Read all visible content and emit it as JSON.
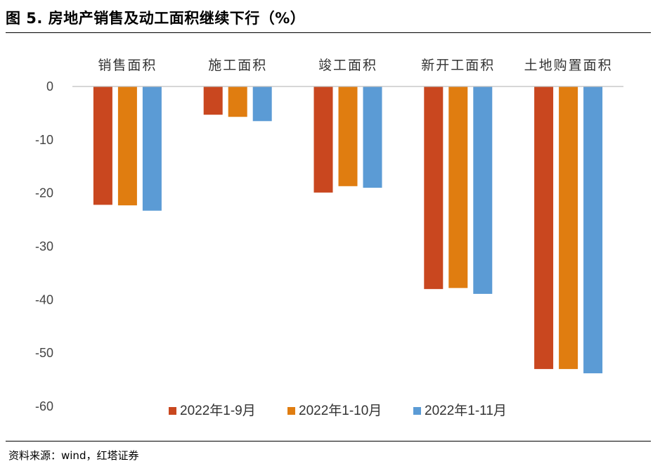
{
  "header": {
    "title": "图 5. 房地产销售及动工面积继续下行（%）"
  },
  "footer": {
    "source": "资料来源：wind，红塔证券"
  },
  "chart_data": {
    "type": "bar",
    "title": "图 5. 房地产销售及动工面积继续下行（%）",
    "xlabel": "",
    "ylabel": "",
    "ylim": [
      -60,
      0
    ],
    "yticks": [
      "0",
      "-10",
      "-20",
      "-30",
      "-40",
      "-50",
      "-60"
    ],
    "ytick_values": [
      0,
      -10,
      -20,
      -30,
      -40,
      -50,
      -60
    ],
    "categories": [
      "销售面积",
      "施工面积",
      "竣工面积",
      "新开工面积",
      "土地购置面积"
    ],
    "series": [
      {
        "name": "2022年1-9月",
        "color": "#C9471F",
        "values": [
          -22.2,
          -5.3,
          -19.9,
          -38.0,
          -53.0
        ]
      },
      {
        "name": "2022年1-10月",
        "color": "#E07D10",
        "values": [
          -22.3,
          -5.7,
          -18.7,
          -37.8,
          -53.0
        ]
      },
      {
        "name": "2022年1-11月",
        "color": "#5B9BD5",
        "values": [
          -23.3,
          -6.5,
          -19.0,
          -38.9,
          -53.8
        ]
      }
    ],
    "legend": "bottom-center",
    "category_labels_position": "top",
    "grid": false
  }
}
